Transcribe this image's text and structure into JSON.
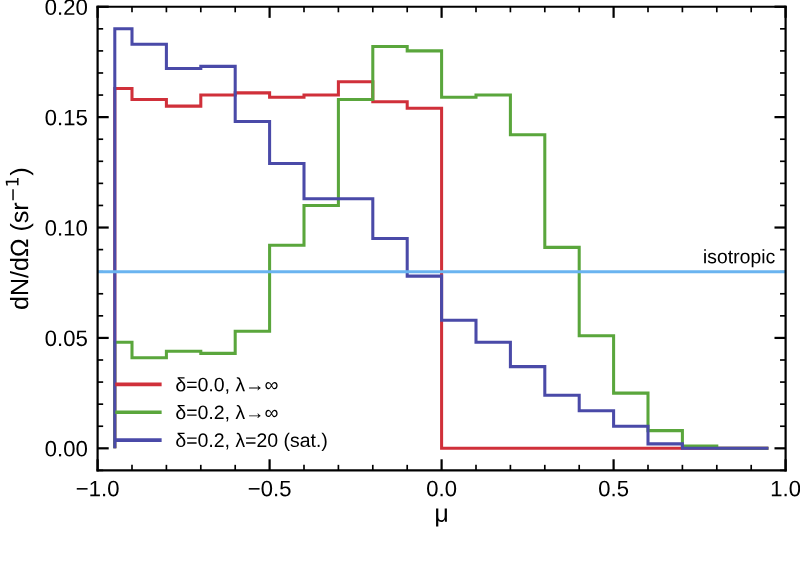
{
  "chart_data": {
    "type": "histogram",
    "xlabel": "μ",
    "ylabel": "dN/dΩ (sr$^{−1}$)",
    "bins": [
      -0.95,
      -0.9,
      -0.8,
      -0.7,
      -0.6,
      -0.5,
      -0.4,
      -0.3,
      -0.2,
      -0.1,
      0.0,
      0.1,
      0.2,
      0.3,
      0.4,
      0.5,
      0.6,
      0.7,
      0.8,
      0.9,
      0.95
    ],
    "series": [
      {
        "name": "δ=0.0, λ→∞",
        "color": "#d0303a",
        "values": [
          0.163,
          0.158,
          0.155,
          0.16,
          0.161,
          0.159,
          0.16,
          0.166,
          0.157,
          0.154,
          0,
          0,
          0,
          0,
          0,
          0,
          0,
          0,
          0,
          0
        ]
      },
      {
        "name": "δ=0.2, λ→∞",
        "color": "#5aa63c",
        "values": [
          0.048,
          0.041,
          0.044,
          0.043,
          0.053,
          0.092,
          0.11,
          0.158,
          0.182,
          0.18,
          0.159,
          0.16,
          0.142,
          0.091,
          0.051,
          0.025,
          0.008,
          0.001,
          0,
          0
        ]
      },
      {
        "name": "δ=0.2, λ=20 (sat.)",
        "color": "#4a4aa8",
        "values": [
          0.19,
          0.183,
          0.172,
          0.173,
          0.148,
          0.129,
          0.113,
          0.113,
          0.095,
          0.078,
          0.058,
          0.048,
          0.037,
          0.024,
          0.017,
          0.01,
          0.002,
          0,
          0,
          0
        ]
      }
    ],
    "ref_lines": [
      {
        "axis": "y",
        "value": 0.08,
        "label": "isotropic",
        "color": "#6ab4f0"
      }
    ],
    "xlim": [
      -1.0,
      1.0
    ],
    "xticks": [
      {
        "value": -1.0,
        "label": "−1.0"
      },
      {
        "value": -0.5,
        "label": "−0.5"
      },
      {
        "value": 0.0,
        "label": "0.0"
      },
      {
        "value": 0.5,
        "label": "0.5"
      },
      {
        "value": 1.0,
        "label": "1.0"
      }
    ],
    "ylim": [
      -0.01,
      0.2
    ],
    "yticks": [
      {
        "value": 0.0,
        "label": "0.00"
      },
      {
        "value": 0.05,
        "label": "0.05"
      },
      {
        "value": 0.1,
        "label": "0.10"
      },
      {
        "value": 0.15,
        "label": "0.15"
      },
      {
        "value": 0.2,
        "label": "0.20"
      }
    ],
    "legend": "bottom left",
    "grid": false
  }
}
